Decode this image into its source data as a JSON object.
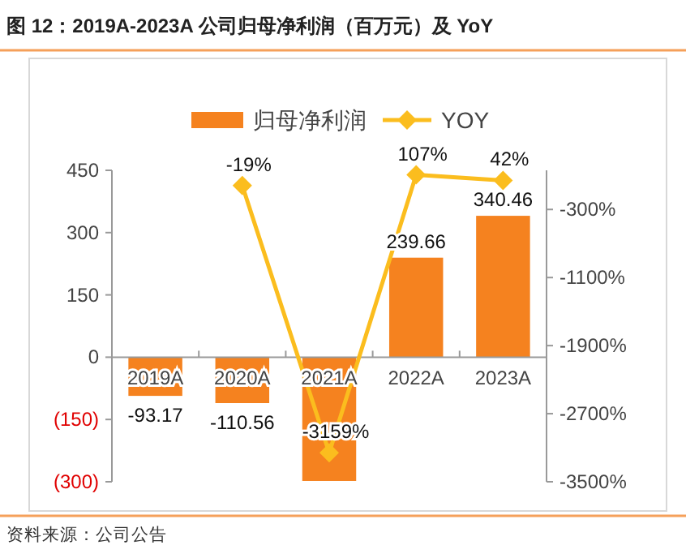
{
  "chart_data": {
    "type": "bar",
    "title": "图 12：2019A-2023A 公司归母净利润（百万元）及 YoY",
    "categories": [
      "2019A",
      "2020A",
      "2021A",
      "2022A",
      "2023A"
    ],
    "series": [
      {
        "name": "归母净利润",
        "color": "#f5821f",
        "values": [
          -93.17,
          -110.56,
          -298,
          239.66,
          340.46
        ],
        "value_labels": [
          "-93.17",
          "-110.56",
          null,
          "239.66",
          "340.46"
        ]
      },
      {
        "name": "YOY",
        "type": "line",
        "axis": "y2",
        "color": "#fbbd1e",
        "marker": "diamond",
        "values": [
          null,
          -19,
          -3159,
          107,
          42
        ],
        "value_labels": [
          null,
          "-19%",
          "-3159%",
          "107%",
          "42%"
        ]
      }
    ],
    "ylim": [
      -300,
      450
    ],
    "yticks": [
      {
        "value": -300,
        "label": "(300)"
      },
      {
        "value": -150,
        "label": "(150)"
      },
      0,
      150,
      300,
      450
    ],
    "y2lim": [
      -3500,
      160
    ],
    "y2ticks": [
      {
        "value": -3500,
        "label": "-3500%"
      },
      {
        "value": -2700,
        "label": "-2700%"
      },
      {
        "value": -1900,
        "label": "-1900%"
      },
      {
        "value": -1100,
        "label": "-1100%"
      },
      {
        "value": -300,
        "label": "-300%"
      }
    ],
    "legend": "top",
    "grid": false,
    "annotations": [
      "资料来源：公司公告"
    ]
  }
}
